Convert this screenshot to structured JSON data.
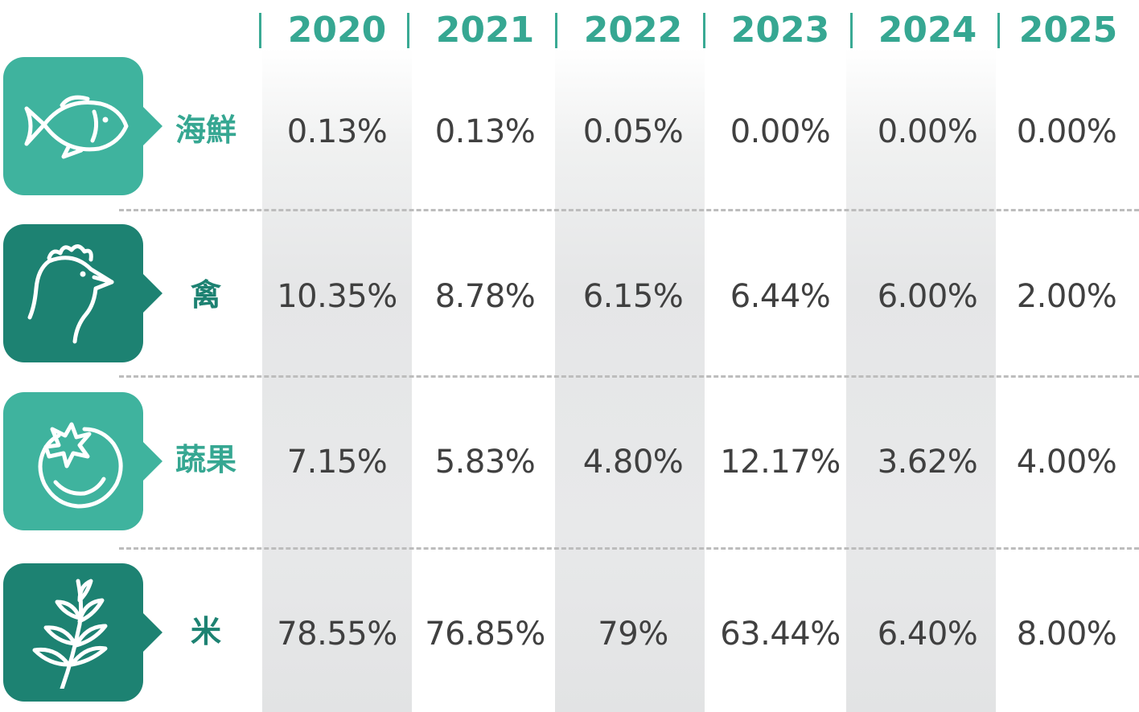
{
  "colors": {
    "accent": "#36a792",
    "icon_light": "#3fb39e",
    "icon_dark": "#1d8272",
    "value_text": "#404040",
    "divider": "#bdbdbd"
  },
  "years": [
    "2020",
    "2021",
    "2022",
    "2023",
    "2024",
    "2025"
  ],
  "rows": [
    {
      "label": "海鮮",
      "icon": "fish-icon",
      "values": [
        "0.13%",
        "0.13%",
        "0.05%",
        "0.00%",
        "0.00%",
        "0.00%"
      ]
    },
    {
      "label": "禽",
      "icon": "chicken-icon",
      "values": [
        "10.35%",
        "8.78%",
        "6.15%",
        "6.44%",
        "6.00%",
        "2.00%"
      ]
    },
    {
      "label": "蔬果",
      "icon": "tomato-icon",
      "values": [
        "7.15%",
        "5.83%",
        "4.80%",
        "12.17%",
        "3.62%",
        "4.00%"
      ]
    },
    {
      "label": "米",
      "icon": "rice-plant-icon",
      "values": [
        "78.55%",
        "76.85%",
        "79%",
        "63.44%",
        "6.40%",
        "8.00%"
      ]
    }
  ]
}
